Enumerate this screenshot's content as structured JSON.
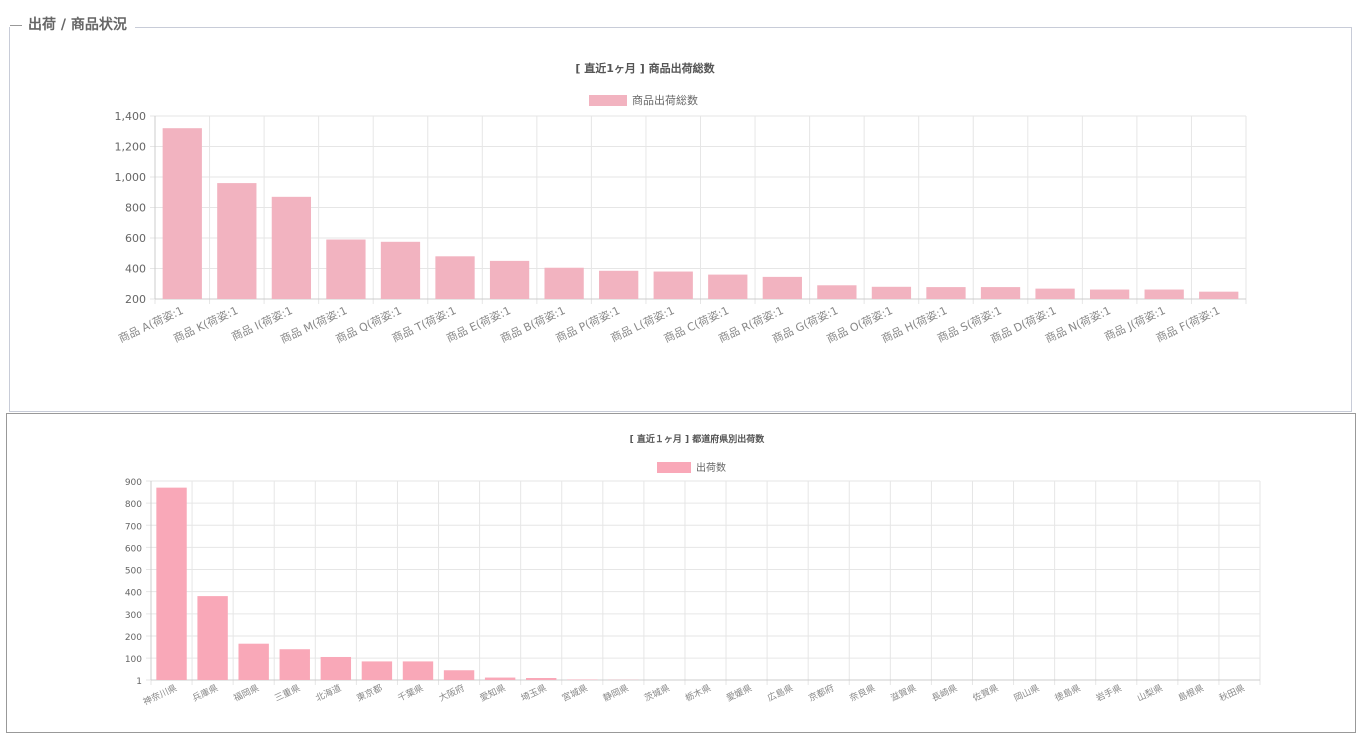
{
  "section": {
    "title": "出荷 / 商品状況"
  },
  "colors": {
    "bar1": "#f2b3c0",
    "bar2": "#f9a8b8",
    "grid": "#e6e6e6",
    "axis": "#cccccc",
    "text": "#666666"
  },
  "chart_data": [
    {
      "type": "bar",
      "title": "[ 直近1ヶ月 ] 商品出荷総数",
      "legend": "商品出荷総数",
      "legend_position": "top",
      "grid": true,
      "categories": [
        "商品 A(荷姿:1",
        "商品 K(荷姿:1",
        "商品 I(荷姿:1",
        "商品 M(荷姿:1",
        "商品 Q(荷姿:1",
        "商品 T(荷姿:1",
        "商品 E(荷姿:1",
        "商品 B(荷姿:1",
        "商品 P(荷姿:1",
        "商品 L(荷姿:1",
        "商品 C(荷姿:1",
        "商品 R(荷姿:1",
        "商品 G(荷姿:1",
        "商品 O(荷姿:1",
        "商品 H(荷姿:1",
        "商品 S(荷姿:1",
        "商品 D(荷姿:1",
        "商品 N(荷姿:1",
        "商品 J(荷姿:1",
        "商品 F(荷姿:1"
      ],
      "values": [
        1320,
        960,
        870,
        590,
        575,
        480,
        450,
        405,
        385,
        380,
        360,
        345,
        290,
        280,
        278,
        278,
        268,
        262,
        262,
        248
      ],
      "ylim": [
        200,
        1400
      ],
      "yticks": [
        200,
        400,
        600,
        800,
        1000,
        1200,
        1400
      ],
      "ytick_labels": [
        "200",
        "400",
        "600",
        "800",
        "1,000",
        "1,200",
        "1,400"
      ]
    },
    {
      "type": "bar",
      "title": "[ 直近１ヶ月 ] 都道府県別出荷数",
      "legend": "出荷数",
      "legend_position": "top",
      "grid": true,
      "categories": [
        "神奈川県",
        "兵庫県",
        "福岡県",
        "三重県",
        "北海道",
        "東京都",
        "千葉県",
        "大阪府",
        "愛知県",
        "埼玉県",
        "宮城県",
        "静岡県",
        "茨城県",
        "栃木県",
        "愛媛県",
        "広島県",
        "京都府",
        "奈良県",
        "滋賀県",
        "長崎県",
        "佐賀県",
        "岡山県",
        "徳島県",
        "岩手県",
        "山梨県",
        "島根県",
        "秋田県"
      ],
      "values": [
        870,
        380,
        165,
        140,
        105,
        85,
        85,
        45,
        12,
        10,
        3,
        2,
        1,
        1,
        1,
        1,
        1,
        1,
        1,
        1,
        1,
        1,
        1,
        1,
        1,
        1,
        1
      ],
      "ylim": [
        1,
        900
      ],
      "yticks": [
        1,
        100,
        200,
        300,
        400,
        500,
        600,
        700,
        800,
        900
      ],
      "ytick_labels": [
        "1",
        "100",
        "200",
        "300",
        "400",
        "500",
        "600",
        "700",
        "800",
        "900"
      ]
    }
  ]
}
